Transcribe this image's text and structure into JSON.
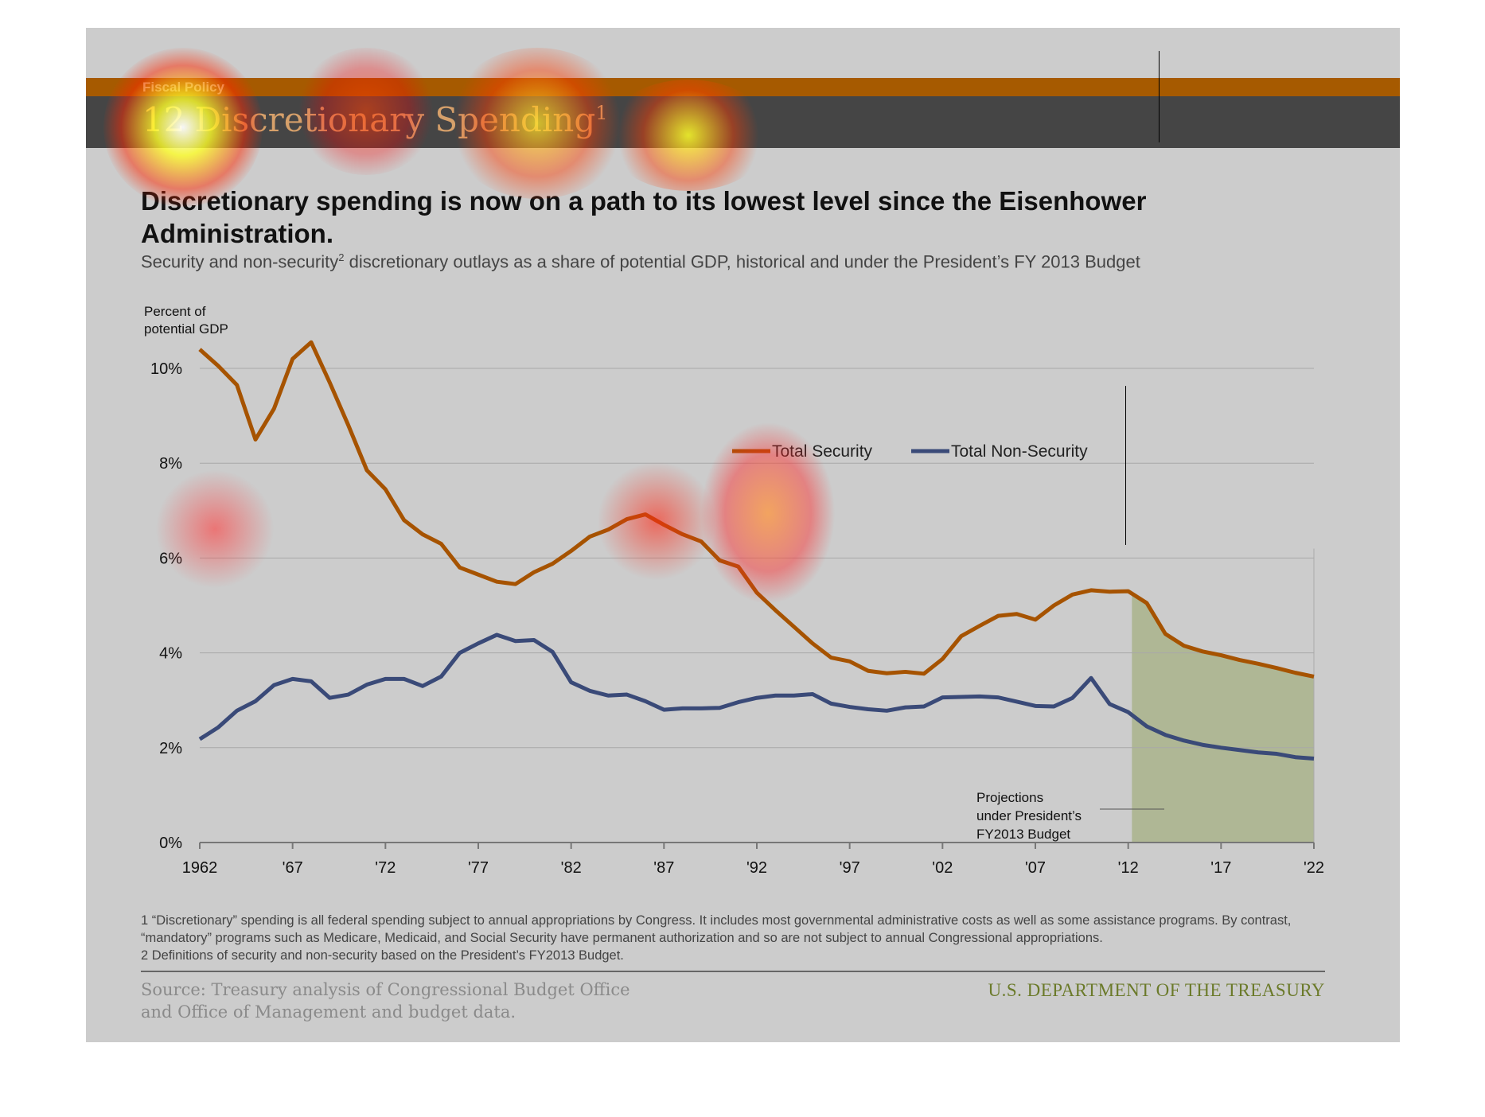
{
  "header": {
    "section": "Fiscal Policy",
    "number": "12",
    "title": "Discretionary Spending",
    "title_sup": "1"
  },
  "headline": "Discretionary spending is now on a path to its lowest level since the Eisenhower Administration.",
  "subtitle": {
    "pre": "Security and non-security",
    "sup": "2",
    "post": " discretionary outlays as a share of potential GDP, historical and under the President’s FY 2013 Budget"
  },
  "chart_data": {
    "type": "line",
    "ylabel_line1": "Percent of",
    "ylabel_line2": "potential GDP",
    "ylim": [
      0,
      10
    ],
    "xlim": [
      1962,
      2022
    ],
    "yticks": [
      {
        "v": 0,
        "label": "0%"
      },
      {
        "v": 2,
        "label": "2%"
      },
      {
        "v": 4,
        "label": "4%"
      },
      {
        "v": 6,
        "label": "6%"
      },
      {
        "v": 8,
        "label": "8%"
      },
      {
        "v": 10,
        "label": "10%"
      }
    ],
    "xticks": [
      {
        "v": 1962,
        "label": "1962"
      },
      {
        "v": 1967,
        "label": "'67"
      },
      {
        "v": 1972,
        "label": "'72"
      },
      {
        "v": 1977,
        "label": "'77"
      },
      {
        "v": 1982,
        "label": "'82"
      },
      {
        "v": 1987,
        "label": "'87"
      },
      {
        "v": 1992,
        "label": "'92"
      },
      {
        "v": 1997,
        "label": "'97"
      },
      {
        "v": 2002,
        "label": "'02"
      },
      {
        "v": 2007,
        "label": "'07"
      },
      {
        "v": 2012,
        "label": "'12"
      },
      {
        "v": 2017,
        "label": "'17"
      },
      {
        "v": 2022,
        "label": "'22"
      }
    ],
    "grid": true,
    "legend_position": "top-right",
    "projection_start": 2012.2,
    "projection_label": [
      "Projections",
      "under President’s",
      "FY2013 Budget"
    ],
    "x_start": 1962,
    "series": [
      {
        "name": "Total Security",
        "color": "#a65300",
        "values": [
          10.4,
          10.05,
          9.65,
          8.5,
          9.15,
          10.2,
          10.55,
          9.7,
          8.8,
          7.85,
          7.45,
          6.8,
          6.5,
          6.3,
          5.8,
          5.65,
          5.5,
          5.45,
          5.7,
          5.88,
          6.15,
          6.45,
          6.6,
          6.82,
          6.92,
          6.7,
          6.5,
          6.35,
          5.95,
          5.82,
          5.27,
          4.9,
          4.55,
          4.2,
          3.9,
          3.82,
          3.62,
          3.57,
          3.6,
          3.56,
          3.87,
          4.35,
          4.57,
          4.78,
          4.82,
          4.7,
          5.0,
          5.23,
          5.32,
          5.29,
          5.3,
          5.05,
          4.4,
          4.15,
          4.03,
          3.95,
          3.85,
          3.77,
          3.68,
          3.58,
          3.5
        ]
      },
      {
        "name": "Total Non-Security",
        "color": "#3a4a78",
        "values": [
          2.18,
          2.43,
          2.78,
          2.98,
          3.32,
          3.45,
          3.4,
          3.05,
          3.12,
          3.33,
          3.45,
          3.45,
          3.3,
          3.5,
          4.0,
          4.2,
          4.38,
          4.25,
          4.27,
          4.02,
          3.38,
          3.2,
          3.1,
          3.12,
          2.98,
          2.8,
          2.83,
          2.83,
          2.84,
          2.96,
          3.05,
          3.1,
          3.1,
          3.13,
          2.93,
          2.86,
          2.81,
          2.78,
          2.85,
          2.87,
          3.06,
          3.07,
          3.08,
          3.06,
          2.97,
          2.88,
          2.87,
          3.05,
          3.47,
          2.92,
          2.75,
          2.45,
          2.27,
          2.15,
          2.06,
          2.0,
          1.95,
          1.9,
          1.87,
          1.8,
          1.77
        ]
      }
    ]
  },
  "colors": {
    "projection_fill": "#afb795",
    "gridline": "#a8a8a8"
  },
  "footnotes": [
    "1 “Discretionary” spending is all federal spending subject to annual appropriations by Congress. It includes most governmental administrative costs as well as some assistance programs. By contrast, “mandatory” programs such as Medicare, Medicaid, and Social Security have permanent authorization and so are not subject to annual Congressional appropriations.",
    "2 Definitions of security and non-security based on the President’s FY2013 Budget."
  ],
  "source_line1": "Source: Treasury analysis of Congressional Budget Office",
  "source_line2": "and Office of Management and budget data.",
  "agency": "U.S. DEPARTMENT OF THE TREASURY"
}
